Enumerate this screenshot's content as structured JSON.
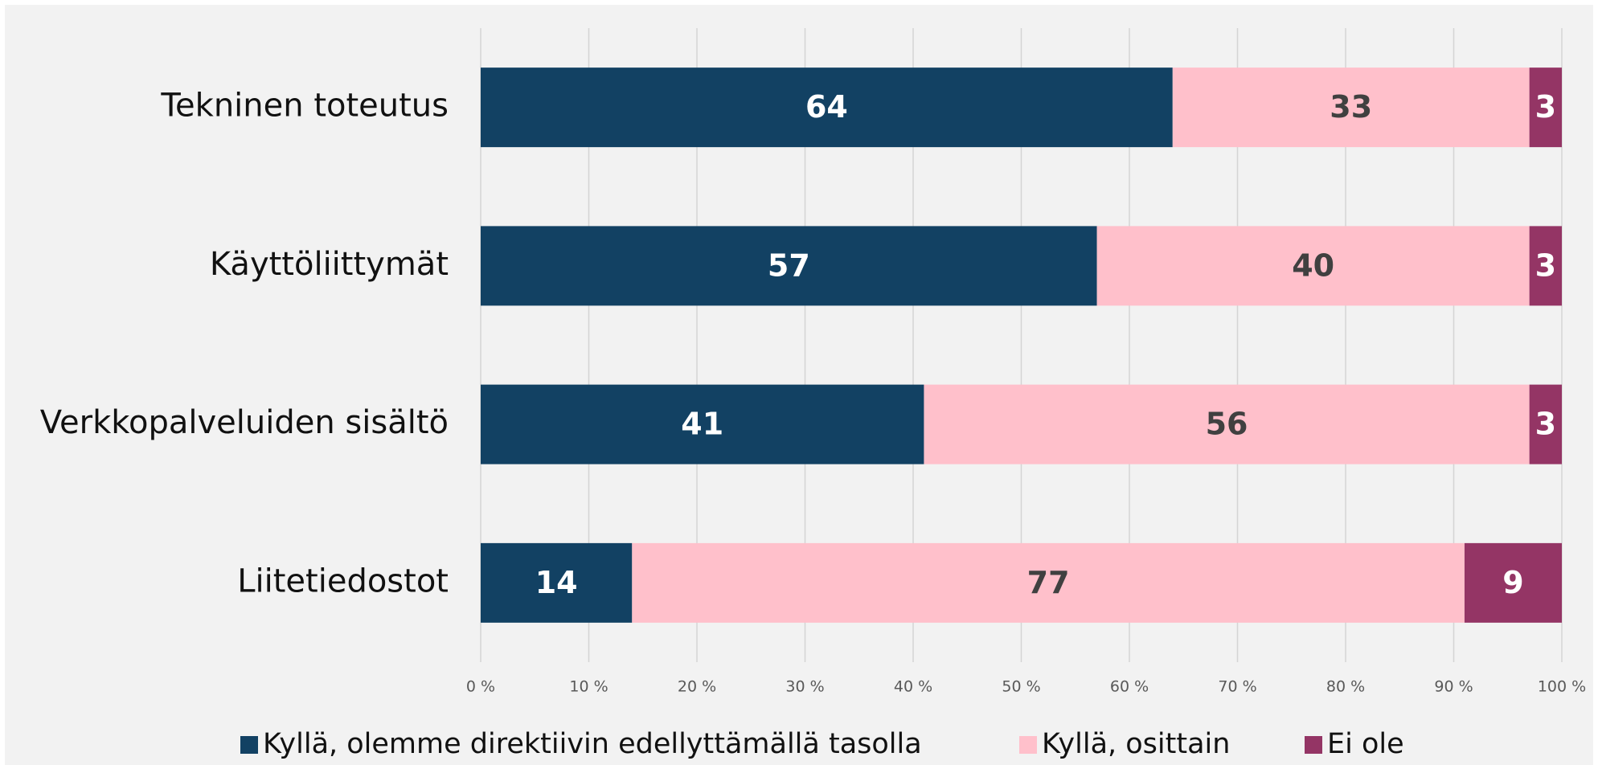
{
  "chart_data": {
    "type": "bar",
    "orientation": "horizontal",
    "stacked": true,
    "categories": [
      "Tekninen toteutus",
      "Käyttöliittymät",
      "Verkkopalveluiden sisältö",
      "Liitetiedostot"
    ],
    "series": [
      {
        "name": "Kyllä, olemme direktiivin edellyttämällä tasolla",
        "color": "#124163",
        "label_color": "#ffffff",
        "values": [
          64,
          57,
          41,
          14
        ]
      },
      {
        "name": "Kyllä, osittain",
        "color": "#ffc0cb",
        "label_color": "#404040",
        "values": [
          33,
          40,
          56,
          77
        ]
      },
      {
        "name": "Ei ole",
        "color": "#943565",
        "label_color": "#ffffff",
        "values": [
          3,
          3,
          3,
          9
        ]
      }
    ],
    "xlim": [
      0,
      100
    ],
    "xticks": [
      {
        "value": 0,
        "label": "0 %"
      },
      {
        "value": 10,
        "label": "10 %"
      },
      {
        "value": 20,
        "label": "20 %"
      },
      {
        "value": 30,
        "label": "30 %"
      },
      {
        "value": 40,
        "label": "40 %"
      },
      {
        "value": 50,
        "label": "50 %"
      },
      {
        "value": 60,
        "label": "60 %"
      },
      {
        "value": 70,
        "label": "70 %"
      },
      {
        "value": 80,
        "label": "80 %"
      },
      {
        "value": 90,
        "label": "90 %"
      },
      {
        "value": 100,
        "label": "100 %"
      }
    ],
    "grid": true,
    "legend": "bottom"
  }
}
